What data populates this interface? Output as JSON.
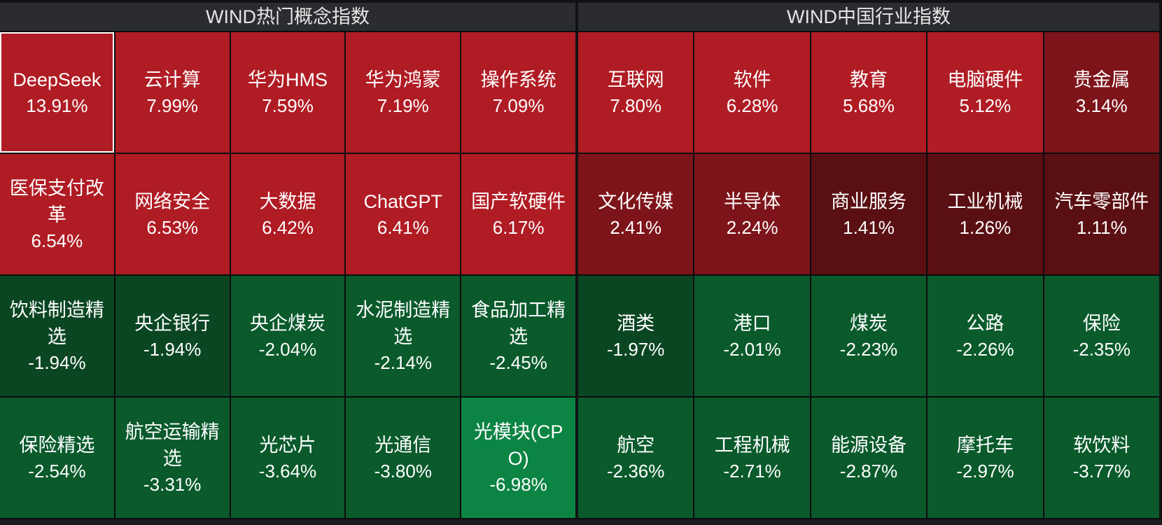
{
  "panels": [
    {
      "title": "WIND热门概念指数",
      "tiles": [
        {
          "name": "DeepSeek",
          "value": "13.91%",
          "color": "#b01c24",
          "selected": true
        },
        {
          "name": "云计算",
          "value": "7.99%",
          "color": "#b01c24"
        },
        {
          "name": "华为HMS",
          "value": "7.59%",
          "color": "#b01c24"
        },
        {
          "name": "华为鸿蒙",
          "value": "7.19%",
          "color": "#b01c24"
        },
        {
          "name": "操作系统",
          "value": "7.09%",
          "color": "#b01c24"
        },
        {
          "name": "医保支付改革",
          "value": "6.54%",
          "color": "#b01c24"
        },
        {
          "name": "网络安全",
          "value": "6.53%",
          "color": "#b01c24"
        },
        {
          "name": "大数据",
          "value": "6.42%",
          "color": "#b01c24"
        },
        {
          "name": "ChatGPT",
          "value": "6.41%",
          "color": "#b01c24"
        },
        {
          "name": "国产软硬件",
          "value": "6.17%",
          "color": "#b01c24"
        },
        {
          "name": "饮料制造精选",
          "value": "-1.94%",
          "color": "#0b4623"
        },
        {
          "name": "央企银行",
          "value": "-1.94%",
          "color": "#0b4623"
        },
        {
          "name": "央企煤炭",
          "value": "-2.04%",
          "color": "#0a5a2c"
        },
        {
          "name": "水泥制造精选",
          "value": "-2.14%",
          "color": "#0a5a2c"
        },
        {
          "name": "食品加工精选",
          "value": "-2.45%",
          "color": "#0a5a2c"
        },
        {
          "name": "保险精选",
          "value": "-2.54%",
          "color": "#0a5a2c"
        },
        {
          "name": "航空运输精选",
          "value": "-3.31%",
          "color": "#0a5a2c"
        },
        {
          "name": "光芯片",
          "value": "-3.64%",
          "color": "#0a5a2c"
        },
        {
          "name": "光通信",
          "value": "-3.80%",
          "color": "#0a5a2c"
        },
        {
          "name": "光模块(CPO)",
          "value": "-6.98%",
          "color": "#0c8443"
        }
      ]
    },
    {
      "title": "WIND中国行业指数",
      "tiles": [
        {
          "name": "互联网",
          "value": "7.80%",
          "color": "#b01c24"
        },
        {
          "name": "软件",
          "value": "6.28%",
          "color": "#b01c24"
        },
        {
          "name": "教育",
          "value": "5.68%",
          "color": "#b01c24"
        },
        {
          "name": "电脑硬件",
          "value": "5.12%",
          "color": "#b01c24"
        },
        {
          "name": "贵金属",
          "value": "3.14%",
          "color": "#7d141a"
        },
        {
          "name": "文化传媒",
          "value": "2.41%",
          "color": "#7d141a"
        },
        {
          "name": "半导体",
          "value": "2.24%",
          "color": "#7d141a"
        },
        {
          "name": "商业服务",
          "value": "1.41%",
          "color": "#5a0f13"
        },
        {
          "name": "工业机械",
          "value": "1.26%",
          "color": "#5a0f13"
        },
        {
          "name": "汽车零部件",
          "value": "1.11%",
          "color": "#5a0f13"
        },
        {
          "name": "酒类",
          "value": "-1.97%",
          "color": "#0b4623"
        },
        {
          "name": "港口",
          "value": "-2.01%",
          "color": "#0a5a2c"
        },
        {
          "name": "煤炭",
          "value": "-2.23%",
          "color": "#0a5a2c"
        },
        {
          "name": "公路",
          "value": "-2.26%",
          "color": "#0a5a2c"
        },
        {
          "name": "保险",
          "value": "-2.35%",
          "color": "#0a5a2c"
        },
        {
          "name": "航空",
          "value": "-2.36%",
          "color": "#0a5a2c"
        },
        {
          "name": "工程机械",
          "value": "-2.71%",
          "color": "#0a5a2c"
        },
        {
          "name": "能源设备",
          "value": "-2.87%",
          "color": "#0a5a2c"
        },
        {
          "name": "摩托车",
          "value": "-2.97%",
          "color": "#0a5a2c"
        },
        {
          "name": "软饮料",
          "value": "-3.77%",
          "color": "#0a5a2c"
        }
      ]
    }
  ]
}
